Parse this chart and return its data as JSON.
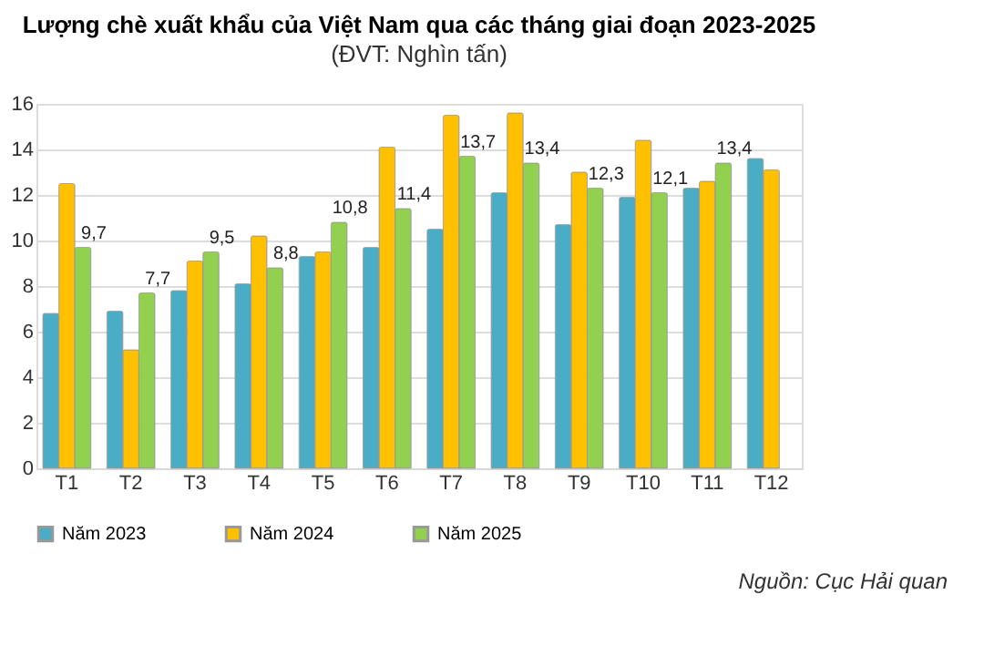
{
  "chart_data": {
    "type": "bar",
    "title": "Lượng chè xuất khẩu của Việt Nam qua các tháng giai đoạn 2023-2025",
    "subtitle": "(ĐVT: Nghìn tấn)",
    "categories": [
      "T1",
      "T2",
      "T3",
      "T4",
      "T5",
      "T6",
      "T7",
      "T8",
      "T9",
      "T10",
      "T11",
      "T12"
    ],
    "series": [
      {
        "name": "Năm 2023",
        "color": "#4bacc6",
        "values": [
          6.8,
          6.9,
          7.8,
          8.1,
          9.3,
          9.7,
          10.5,
          12.1,
          10.7,
          11.9,
          12.3,
          13.6
        ]
      },
      {
        "name": "Năm 2024",
        "color": "#ffc000",
        "values": [
          12.5,
          5.2,
          9.1,
          10.2,
          9.5,
          14.1,
          15.5,
          15.6,
          13.0,
          14.4,
          12.6,
          13.1
        ]
      },
      {
        "name": "Năm 2025",
        "color": "#92d050",
        "values": [
          9.7,
          7.7,
          9.5,
          8.8,
          10.8,
          11.4,
          13.7,
          13.4,
          12.3,
          12.1,
          13.4,
          null
        ],
        "value_labels": [
          "9,7",
          "7,7",
          "9,5",
          "8,8",
          "10,8",
          "11,4",
          "13,7",
          "13,4",
          "12,3",
          "12,1",
          "13,4",
          null
        ]
      }
    ],
    "ylim": [
      0,
      16
    ],
    "yticks": [
      0,
      2,
      4,
      6,
      8,
      10,
      12,
      14,
      16
    ],
    "grid": "y",
    "legend": "bottom",
    "annotations": [
      "Nguồn: Cục Hải quan"
    ]
  }
}
